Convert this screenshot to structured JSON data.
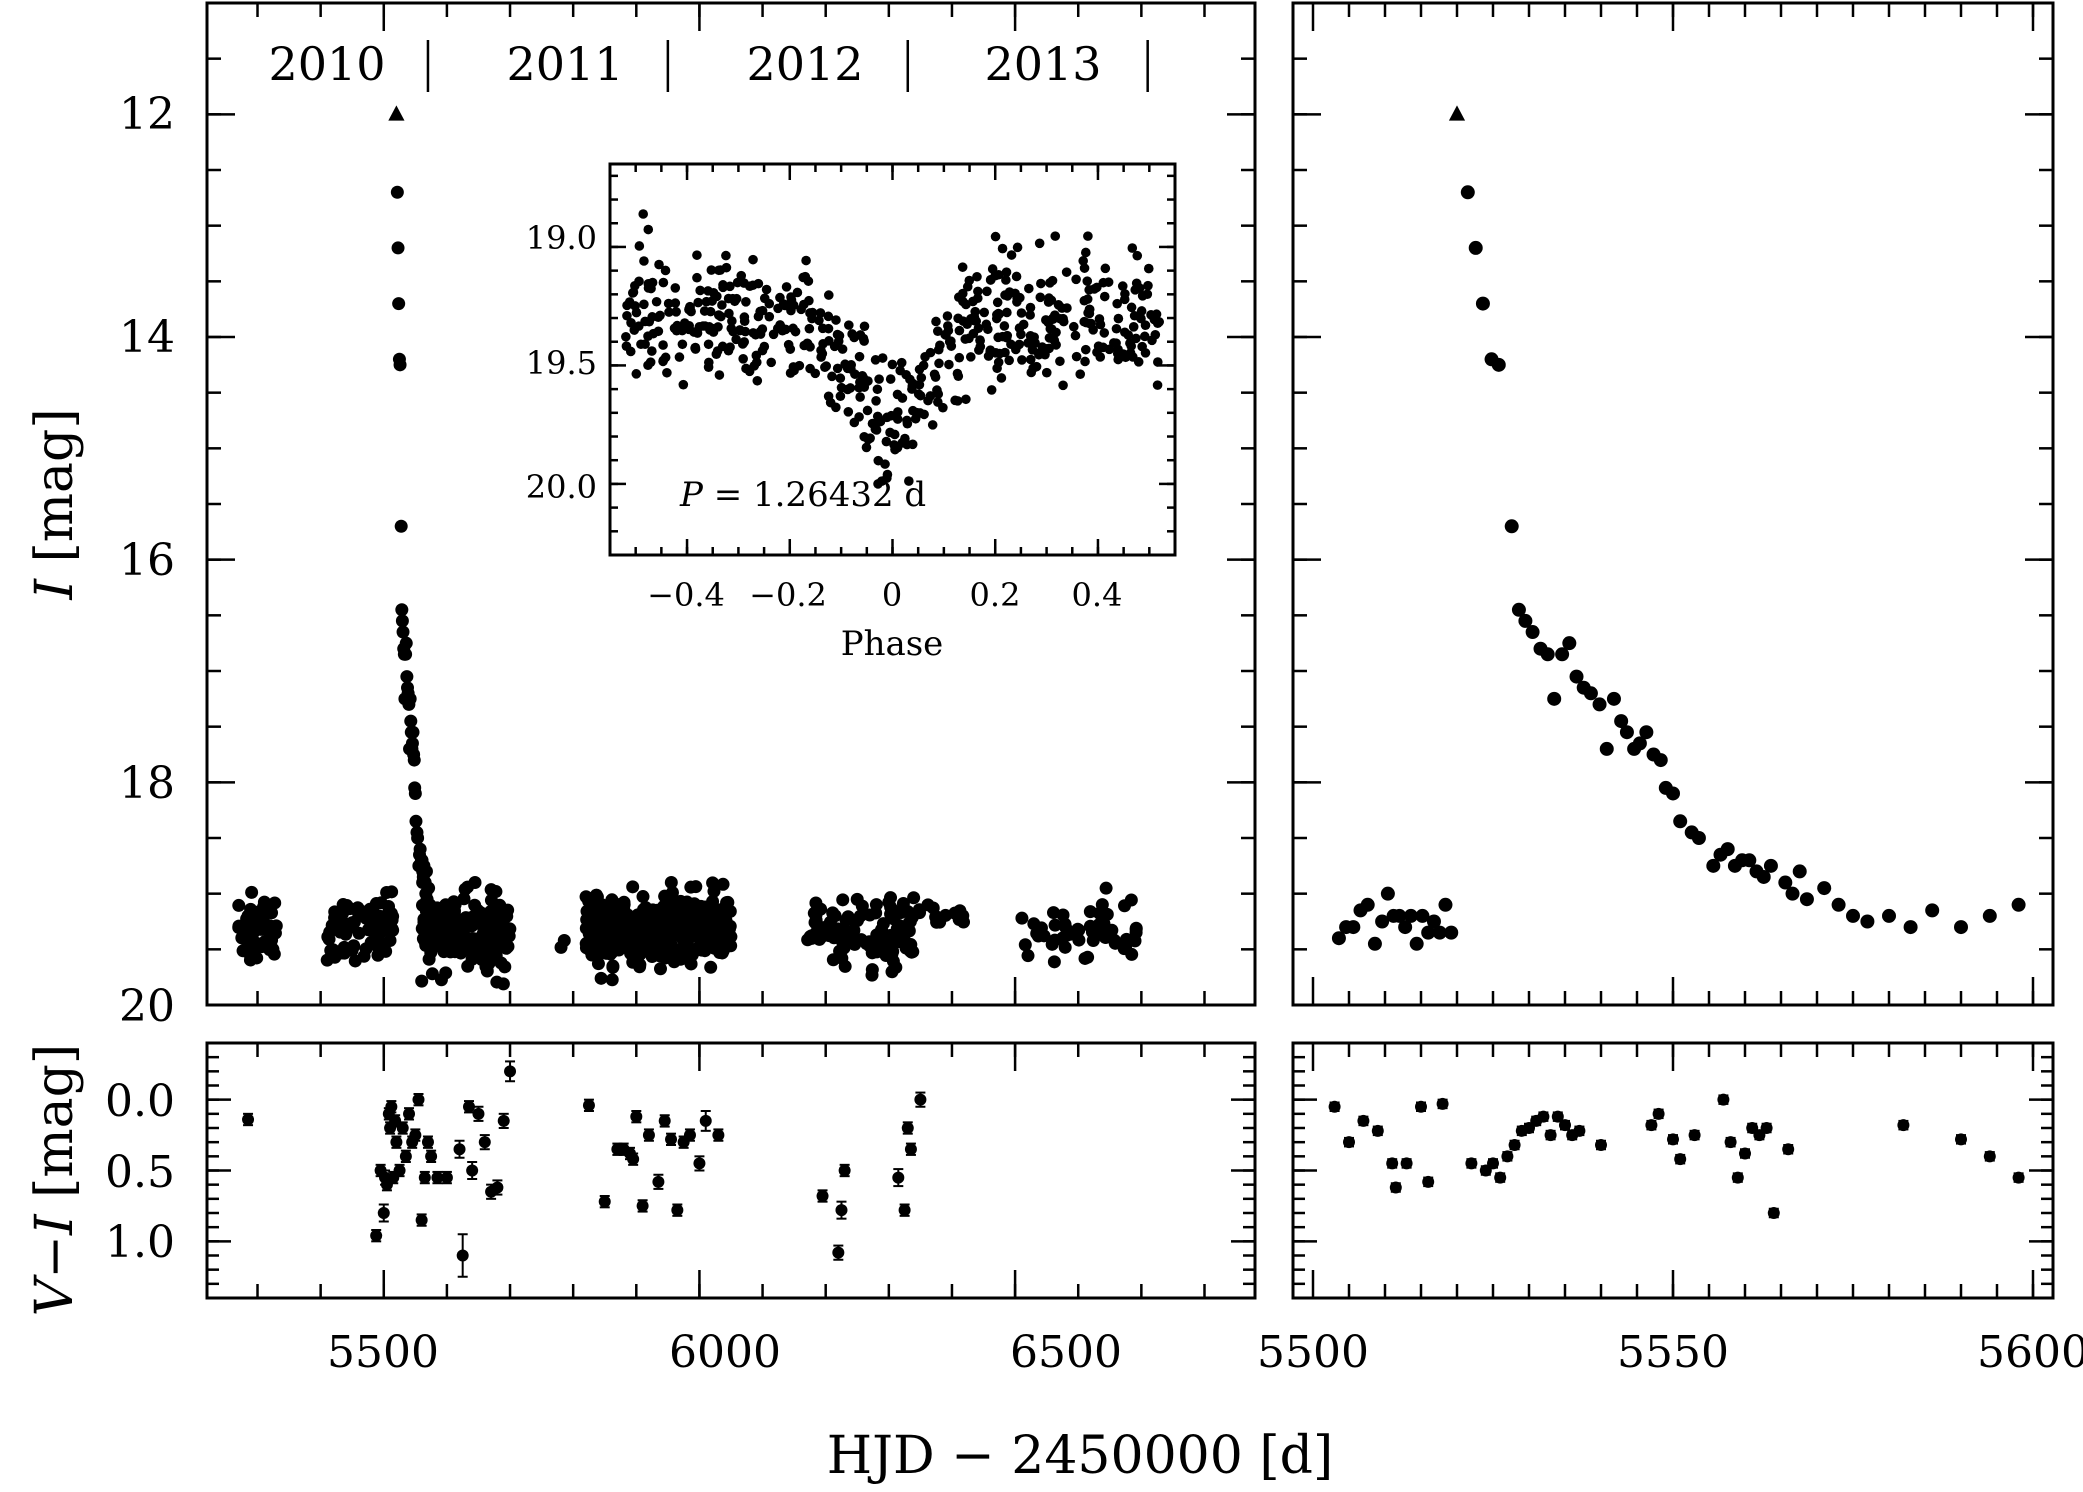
{
  "figure": {
    "xlabel": "HJD − 2450000 [d]",
    "years": [
      "2010",
      "2011",
      "2012",
      "2013"
    ],
    "inset_text_P": "P",
    "inset_text_value": " = 1.26432 d"
  },
  "chart_data": [
    {
      "id": "light-curve-full",
      "type": "scatter",
      "xlabel": "HJD − 2450000 [d]",
      "ylabel": "I [mag]",
      "ylabel_italic": "I",
      "ylabel_rest": " [mag]",
      "xlim": [
        5220,
        6880
      ],
      "ylim": [
        20,
        11
      ],
      "xticks": [
        5500,
        6000,
        6500
      ],
      "xtick_labels": [
        "5500",
        "6000",
        "6500"
      ],
      "yticks": [
        12,
        14,
        16,
        18,
        20
      ],
      "ytick_labels": [
        "12",
        "14",
        "16",
        "18",
        "20"
      ],
      "year_boundaries": [
        5570,
        5950,
        6330,
        6710
      ],
      "peak_marker": {
        "x": 5520,
        "y": 12.0,
        "shape": "triangle"
      },
      "outburst": {
        "x": [
          5521.5,
          5522.6,
          5523.6,
          5524.8,
          5525.8,
          5527.6,
          5528.6,
          5529.5,
          5530.5,
          5531.6,
          5532.6,
          5533.5,
          5534.6,
          5535.6,
          5536.6,
          5537.6,
          5538.6,
          5539.8,
          5540.8,
          5541.8,
          5542.8,
          5543.6,
          5544.6,
          5545.4,
          5546.3,
          5547.3,
          5548.3,
          5549.0,
          5550.0,
          5551.0,
          5552.6,
          5553.6,
          5555.6,
          5556.6,
          5557.6,
          5558.6,
          5559.6,
          5560.6,
          5561.6,
          5562.6,
          5563.6,
          5565.6,
          5566.6,
          5567.6,
          5568.6,
          5571.0,
          5573.0,
          5575.0,
          5577.0,
          5580.0,
          5583.0,
          5586.0,
          5590.0,
          5594.0,
          5598.0
        ],
        "y": [
          12.7,
          13.2,
          13.7,
          14.2,
          14.25,
          15.7,
          16.45,
          16.55,
          16.65,
          16.8,
          16.85,
          17.25,
          16.85,
          16.75,
          17.05,
          17.15,
          17.2,
          17.3,
          17.7,
          17.25,
          17.45,
          17.55,
          17.7,
          17.65,
          17.55,
          17.75,
          17.8,
          18.05,
          18.1,
          18.35,
          18.45,
          18.5,
          18.75,
          18.65,
          18.6,
          18.75,
          18.7,
          18.7,
          18.8,
          18.85,
          18.75,
          18.9,
          19.0,
          18.8,
          19.05,
          18.95,
          19.1,
          19.2,
          19.25,
          19.2,
          19.3,
          19.15,
          19.3,
          19.2,
          19.1
        ]
      },
      "quiescence_segments": [
        {
          "x_start": 5270,
          "x_end": 5330,
          "n": 60,
          "y_mean": 19.35,
          "y_scatter": 0.3
        },
        {
          "x_start": 5410,
          "x_end": 5515,
          "n": 80,
          "y_mean": 19.3,
          "y_scatter": 0.28
        },
        {
          "x_start": 5560,
          "x_end": 5700,
          "n": 190,
          "y_mean": 19.35,
          "y_scatter": 0.32
        },
        {
          "x_start": 5780,
          "x_end": 5790,
          "n": 2,
          "y_mean": 19.5,
          "y_scatter": 0.15
        },
        {
          "x_start": 5820,
          "x_end": 6050,
          "n": 400,
          "y_mean": 19.3,
          "y_scatter": 0.3
        },
        {
          "x_start": 6170,
          "x_end": 6340,
          "n": 110,
          "y_mean": 19.35,
          "y_scatter": 0.3
        },
        {
          "x_start": 6340,
          "x_end": 6420,
          "n": 14,
          "y_mean": 19.2,
          "y_scatter": 0.15
        },
        {
          "x_start": 6510,
          "x_end": 6700,
          "n": 55,
          "y_mean": 19.35,
          "y_scatter": 0.28
        }
      ]
    },
    {
      "id": "light-curve-zoom",
      "type": "scatter",
      "xlim": [
        5500,
        5605
      ],
      "ylim": [
        20,
        11
      ],
      "xticks": [
        5500,
        5550,
        5600
      ],
      "xtick_labels": [
        "5500",
        "5550",
        "5600"
      ],
      "peak_marker": {
        "x": 5520,
        "y": 12.0,
        "shape": "triangle"
      },
      "x": [
        5503.6,
        5504.6,
        5505.6,
        5506.6,
        5507.6,
        5508.6,
        5509.6,
        5510.4,
        5511.2,
        5512.0,
        5512.8,
        5513.6,
        5514.4,
        5515.2,
        5516.0,
        5516.8,
        5517.6,
        5518.4,
        5519.2
      ],
      "y": [
        19.4,
        19.3,
        19.3,
        19.15,
        19.1,
        19.45,
        19.25,
        19.0,
        19.2,
        19.2,
        19.3,
        19.2,
        19.45,
        19.2,
        19.35,
        19.25,
        19.35,
        19.1,
        19.35
      ]
    },
    {
      "id": "color-full",
      "type": "scatter",
      "ylabel": "V−I [mag]",
      "ylabel_italic": "V",
      "ylabel_minus": "−",
      "ylabel_italic2": "I",
      "ylabel_rest": " [mag]",
      "xlim": [
        5220,
        6880
      ],
      "ylim": [
        1.4,
        -0.4
      ],
      "yticks": [
        0.0,
        0.5,
        1.0
      ],
      "ytick_labels": [
        "0.0",
        "0.5",
        "1.0"
      ],
      "x": [
        5285,
        5488,
        5495,
        5500,
        5502,
        5505,
        5508,
        5510,
        5512,
        5515,
        5518,
        5520,
        5525,
        5530,
        5535,
        5540,
        5545,
        5550,
        5555,
        5560,
        5565,
        5570,
        5575,
        5585,
        5600,
        5620,
        5625,
        5635,
        5640,
        5650,
        5660,
        5670,
        5680,
        5690,
        5700,
        5825,
        5850,
        5870,
        5880,
        5890,
        5895,
        5900,
        5910,
        5920,
        5935,
        5945,
        5955,
        5965,
        5975,
        5985,
        6000,
        6010,
        6030,
        6195,
        6220,
        6225,
        6230,
        6315,
        6325,
        6330,
        6335,
        6350
      ],
      "y": [
        0.14,
        0.96,
        0.5,
        0.8,
        0.55,
        0.6,
        0.1,
        0.2,
        0.05,
        0.55,
        0.15,
        0.3,
        0.5,
        0.2,
        0.4,
        0.1,
        0.3,
        0.25,
        0.0,
        0.85,
        0.55,
        0.3,
        0.4,
        0.55,
        0.55,
        0.35,
        1.1,
        0.05,
        0.5,
        0.1,
        0.3,
        0.65,
        0.62,
        0.15,
        -0.2,
        0.04,
        0.72,
        0.35,
        0.35,
        0.38,
        0.42,
        0.12,
        0.75,
        0.25,
        0.58,
        0.15,
        0.28,
        0.78,
        0.3,
        0.25,
        0.45,
        0.15,
        0.25,
        0.68,
        1.08,
        0.78,
        0.5,
        0.55,
        0.78,
        0.2,
        0.35,
        0.0
      ],
      "err": [
        0.04,
        0.04,
        0.04,
        0.06,
        0.05,
        0.04,
        0.04,
        0.04,
        0.04,
        0.04,
        0.04,
        0.04,
        0.04,
        0.04,
        0.04,
        0.04,
        0.04,
        0.04,
        0.04,
        0.04,
        0.04,
        0.04,
        0.04,
        0.04,
        0.04,
        0.06,
        0.15,
        0.04,
        0.06,
        0.05,
        0.05,
        0.05,
        0.05,
        0.05,
        0.07,
        0.04,
        0.04,
        0.04,
        0.04,
        0.04,
        0.04,
        0.04,
        0.04,
        0.04,
        0.05,
        0.04,
        0.04,
        0.04,
        0.04,
        0.04,
        0.05,
        0.07,
        0.04,
        0.04,
        0.05,
        0.06,
        0.04,
        0.06,
        0.04,
        0.04,
        0.04,
        0.05
      ]
    },
    {
      "id": "color-zoom",
      "type": "scatter",
      "xlim": [
        5500,
        5605
      ],
      "ylim": [
        1.4,
        -0.4
      ],
      "x": [
        5503,
        5505,
        5507,
        5509,
        5511,
        5511.5,
        5513,
        5515,
        5516,
        5518,
        5522,
        5524,
        5525,
        5526,
        5527,
        5528,
        5529,
        5530,
        5531,
        5532,
        5533,
        5534,
        5535,
        5536,
        5537,
        5540,
        5547,
        5548,
        5550,
        5551,
        5553,
        5557,
        5558,
        5559,
        5560,
        5561,
        5562,
        5563,
        5564,
        5566,
        5582,
        5590,
        5594,
        5598
      ],
      "y": [
        0.05,
        0.3,
        0.15,
        0.22,
        0.45,
        0.62,
        0.45,
        0.05,
        0.58,
        0.03,
        0.45,
        0.5,
        0.45,
        0.55,
        0.4,
        0.32,
        0.22,
        0.2,
        0.15,
        0.12,
        0.25,
        0.12,
        0.18,
        0.25,
        0.22,
        0.32,
        0.18,
        0.1,
        0.28,
        0.42,
        0.25,
        0.0,
        0.3,
        0.55,
        0.38,
        0.2,
        0.25,
        0.2,
        0.8,
        0.35,
        0.18,
        0.28,
        0.4,
        0.55
      ],
      "err": [
        0.03,
        0.03,
        0.03,
        0.03,
        0.03,
        0.03,
        0.03,
        0.03,
        0.03,
        0.03,
        0.03,
        0.03,
        0.03,
        0.03,
        0.03,
        0.03,
        0.03,
        0.03,
        0.03,
        0.03,
        0.03,
        0.03,
        0.03,
        0.03,
        0.03,
        0.03,
        0.03,
        0.03,
        0.03,
        0.03,
        0.03,
        0.03,
        0.03,
        0.03,
        0.03,
        0.03,
        0.03,
        0.03,
        0.03,
        0.03,
        0.03,
        0.03,
        0.03,
        0.03
      ]
    },
    {
      "id": "phased-inset",
      "type": "scatter",
      "xlabel": "Phase",
      "xlim": [
        -0.55,
        0.55
      ],
      "ylim": [
        20.3,
        18.65
      ],
      "xticks": [
        -0.4,
        -0.2,
        0,
        0.2,
        0.4
      ],
      "xtick_labels": [
        "−0.4",
        "−0.2",
        "0",
        "0.2",
        "0.4"
      ],
      "yticks": [
        19.0,
        19.5,
        20.0
      ],
      "ytick_labels": [
        "19.0",
        "19.5",
        "20.0"
      ],
      "period_days": 1.26432,
      "mean_mag": 19.3,
      "eclipse_depth": 0.5,
      "eclipse_width": 0.06,
      "n_points": 560,
      "scatter": 0.22
    }
  ]
}
